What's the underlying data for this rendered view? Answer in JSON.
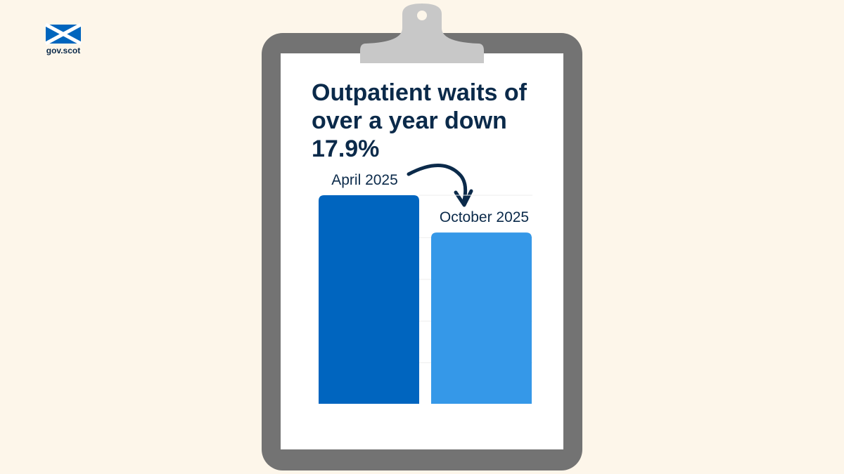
{
  "brand": "gov.scot",
  "chart_data": {
    "type": "bar",
    "title": "Outpatient waits of over a year down 17.9%",
    "categories": [
      "April 2025",
      "October 2025"
    ],
    "values": [
      100,
      82.1
    ],
    "colors": [
      "#0065bf",
      "#3598e8"
    ],
    "ylim": [
      0,
      100
    ]
  }
}
